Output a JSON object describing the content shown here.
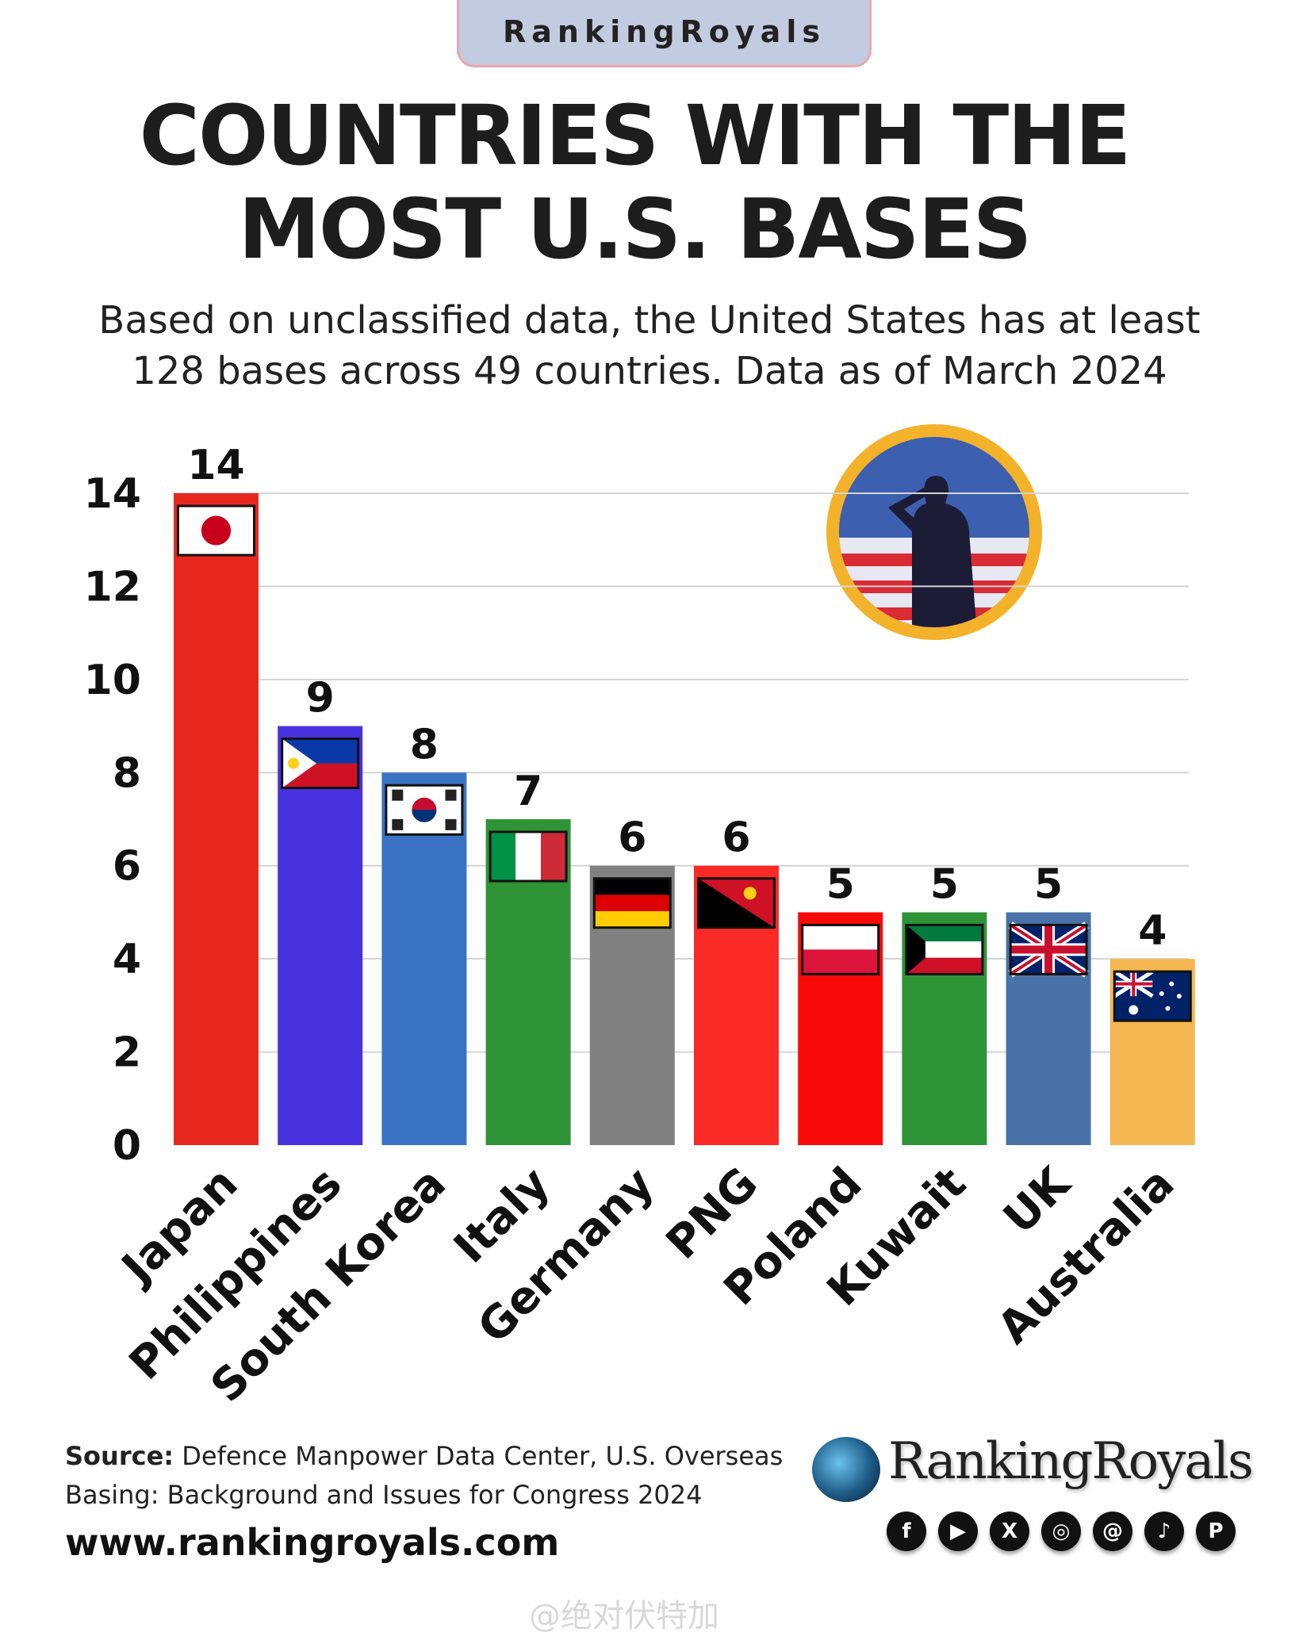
{
  "badge": "RankingRoyals",
  "title_lines": [
    "COUNTRIES WITH THE",
    "MOST U.S. BASES"
  ],
  "subtitle_lines": [
    "Based on unclassified data, the United States has at least",
    "128 bases across 49 countries. Data as of March 2024"
  ],
  "chart_data": {
    "type": "bar",
    "title": "COUNTRIES WITH THE MOST U.S. BASES",
    "xlabel": "",
    "ylabel": "",
    "categories": [
      "Japan",
      "Philippines",
      "South Korea",
      "Italy",
      "Germany",
      "PNG",
      "Poland",
      "Kuwait",
      "UK",
      "Australia"
    ],
    "values": [
      14,
      9,
      8,
      7,
      6,
      6,
      5,
      5,
      5,
      4
    ],
    "colors": [
      "#e8281f",
      "#4a31de",
      "#3a73c4",
      "#2e9435",
      "#808080",
      "#fb2a26",
      "#f90a08",
      "#2e9435",
      "#4a72a8",
      "#f4b650"
    ],
    "flags": [
      "japan",
      "philippines",
      "south-korea",
      "italy",
      "germany",
      "papua-new-guinea",
      "poland",
      "kuwait",
      "united-kingdom",
      "australia"
    ],
    "ylim": [
      0,
      14
    ],
    "yticks": [
      0,
      2,
      4,
      6,
      8,
      10,
      12,
      14
    ],
    "grid": true,
    "data_labels": true
  },
  "source": {
    "label": "Source:",
    "text": "Defence Manpower Data Center, U.S. Overseas Basing: Background and Issues for Congress 2024"
  },
  "url": "www.rankingroyals.com",
  "brand": "RankingRoyals",
  "socials": [
    {
      "icon": "facebook-icon",
      "glyph": "f"
    },
    {
      "icon": "youtube-icon",
      "glyph": "▶"
    },
    {
      "icon": "x-icon",
      "glyph": "X"
    },
    {
      "icon": "instagram-icon",
      "glyph": "◎"
    },
    {
      "icon": "threads-icon",
      "glyph": "@"
    },
    {
      "icon": "tiktok-icon",
      "glyph": "♪"
    },
    {
      "icon": "pinterest-icon",
      "glyph": "P"
    }
  ],
  "watermark": "@绝对伏特加"
}
